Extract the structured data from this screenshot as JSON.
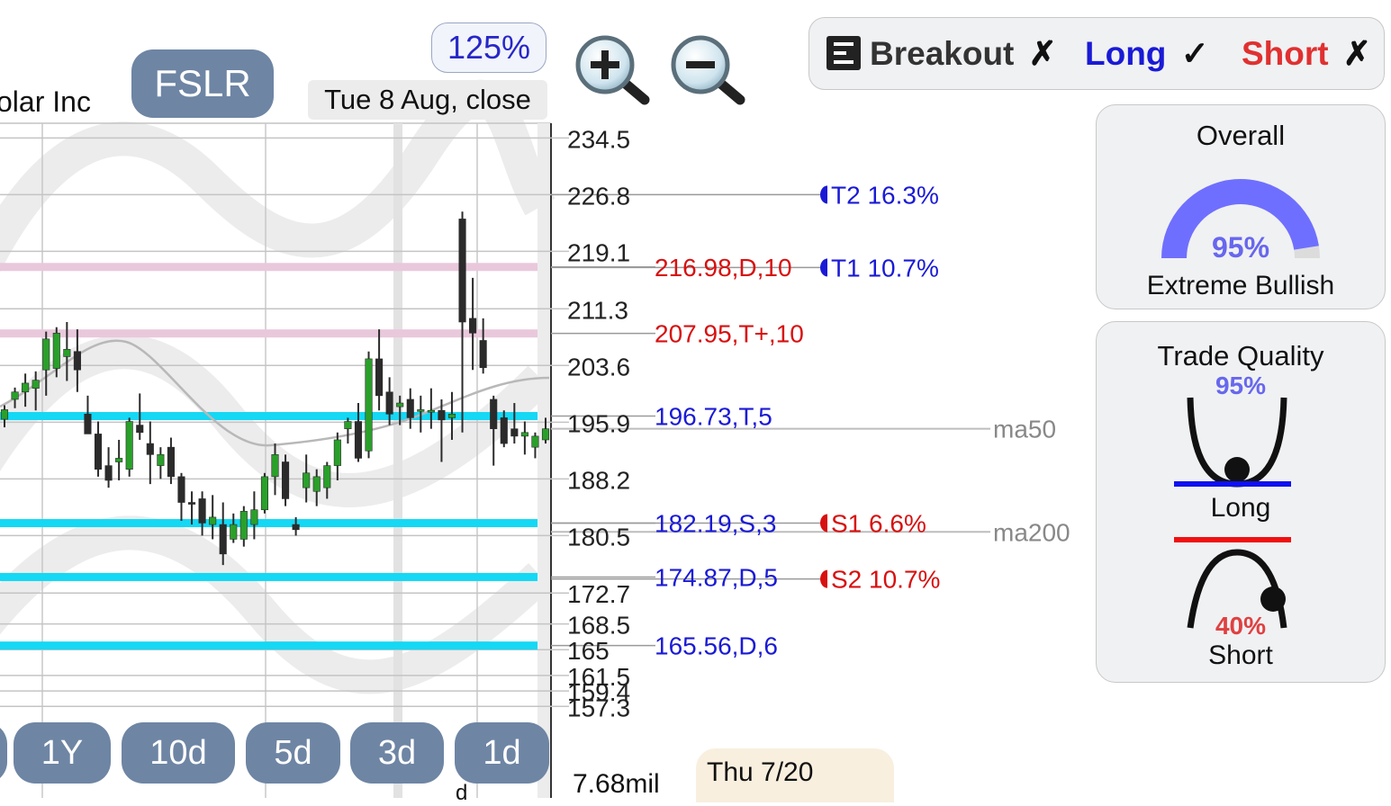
{
  "header": {
    "ticker": "FSLR",
    "company_fragment": "olar Inc",
    "zoom_level": "125%",
    "date_label": "Tue 8 Aug, close"
  },
  "strategy_bar": {
    "breakout": {
      "label": "Breakout",
      "mark": "✗"
    },
    "long": {
      "label": "Long",
      "mark": "✓"
    },
    "short": {
      "label": "Short",
      "mark": "✗"
    }
  },
  "overall": {
    "title": "Overall",
    "percent": "95%",
    "percent_value": 0.95,
    "verdict": "Extreme Bullish"
  },
  "trade_quality": {
    "title": "Trade Quality",
    "long_percent": "95%",
    "long_label": "Long",
    "short_percent": "40%",
    "short_label": "Short"
  },
  "timeframes": [
    "1Y",
    "10d",
    "5d",
    "3d",
    "1d"
  ],
  "volume_label": "7.68mil",
  "tooltip_date": "Thu 7/20",
  "d_marker": "d",
  "colors": {
    "up": "#2aa02a",
    "down": "#2b2b2b",
    "cyan": "#14d8f4",
    "pink": "#e9c8dc",
    "blue_text": "#1a1ad6",
    "red_text": "#d81010"
  },
  "chart_data": {
    "type": "candlestick",
    "ylim": [
      155.5,
      236.5
    ],
    "y_tick_labels": [
      "234.5",
      "226.8",
      "219.1",
      "211.3",
      "203.6",
      "195.9",
      "188.2",
      "180.5",
      "172.7",
      "168.5",
      "165",
      "161.5",
      "159.4",
      "157.3"
    ],
    "candles": [
      {
        "o": 196.3,
        "h": 198.2,
        "l": 195.2,
        "c": 197.6
      },
      {
        "o": 199.0,
        "h": 200.6,
        "l": 197.8,
        "c": 200.0
      },
      {
        "o": 200.0,
        "h": 202.5,
        "l": 198.0,
        "c": 201.2
      },
      {
        "o": 200.5,
        "h": 202.8,
        "l": 197.5,
        "c": 201.6
      },
      {
        "o": 203.0,
        "h": 208.2,
        "l": 199.5,
        "c": 207.2
      },
      {
        "o": 203.2,
        "h": 208.8,
        "l": 202.0,
        "c": 208.0
      },
      {
        "o": 204.8,
        "h": 209.5,
        "l": 201.5,
        "c": 205.8
      },
      {
        "o": 205.5,
        "h": 208.5,
        "l": 200.0,
        "c": 203.0
      },
      {
        "o": 197.0,
        "h": 199.5,
        "l": 195.0,
        "c": 194.3
      },
      {
        "o": 194.3,
        "h": 196.0,
        "l": 188.5,
        "c": 189.5
      },
      {
        "o": 190.0,
        "h": 192.5,
        "l": 187.0,
        "c": 188.0
      },
      {
        "o": 190.5,
        "h": 193.5,
        "l": 188.0,
        "c": 191.0
      },
      {
        "o": 189.5,
        "h": 196.5,
        "l": 188.5,
        "c": 196.0
      },
      {
        "o": 195.5,
        "h": 199.8,
        "l": 193.5,
        "c": 194.5
      },
      {
        "o": 193.0,
        "h": 196.0,
        "l": 187.5,
        "c": 191.5
      },
      {
        "o": 190.0,
        "h": 192.5,
        "l": 188.2,
        "c": 191.5
      },
      {
        "o": 192.5,
        "h": 193.8,
        "l": 187.5,
        "c": 188.5
      },
      {
        "o": 188.5,
        "h": 189.0,
        "l": 182.5,
        "c": 185.0
      },
      {
        "o": 185.0,
        "h": 186.5,
        "l": 182.0,
        "c": 184.8
      },
      {
        "o": 185.5,
        "h": 186.5,
        "l": 180.5,
        "c": 182.2
      },
      {
        "o": 182.0,
        "h": 186.0,
        "l": 180.0,
        "c": 183.0
      },
      {
        "o": 182.0,
        "h": 185.0,
        "l": 176.5,
        "c": 178.0
      },
      {
        "o": 180.0,
        "h": 183.5,
        "l": 179.5,
        "c": 182.0
      },
      {
        "o": 180.0,
        "h": 184.5,
        "l": 179.0,
        "c": 183.8
      },
      {
        "o": 182.0,
        "h": 186.5,
        "l": 180.0,
        "c": 184.0
      },
      {
        "o": 184.0,
        "h": 189.0,
        "l": 183.5,
        "c": 188.5
      },
      {
        "o": 188.5,
        "h": 193.0,
        "l": 186.0,
        "c": 191.5
      },
      {
        "o": 190.5,
        "h": 191.5,
        "l": 184.5,
        "c": 185.5
      },
      {
        "o": 182.0,
        "h": 183.0,
        "l": 180.5,
        "c": 181.3
      },
      {
        "o": 187.0,
        "h": 191.5,
        "l": 185.0,
        "c": 189.0
      },
      {
        "o": 186.5,
        "h": 189.5,
        "l": 184.5,
        "c": 188.5
      },
      {
        "o": 187.0,
        "h": 190.5,
        "l": 185.5,
        "c": 190.0
      },
      {
        "o": 190.0,
        "h": 194.5,
        "l": 188.0,
        "c": 193.5
      },
      {
        "o": 195.0,
        "h": 196.5,
        "l": 193.0,
        "c": 196.0
      },
      {
        "o": 196.0,
        "h": 198.5,
        "l": 190.5,
        "c": 191.0
      },
      {
        "o": 192.0,
        "h": 205.5,
        "l": 191.0,
        "c": 204.5
      },
      {
        "o": 204.5,
        "h": 208.5,
        "l": 197.5,
        "c": 199.5
      },
      {
        "o": 200.0,
        "h": 202.0,
        "l": 195.5,
        "c": 197.0
      },
      {
        "o": 198.0,
        "h": 199.5,
        "l": 195.5,
        "c": 198.5
      },
      {
        "o": 199.0,
        "h": 200.5,
        "l": 195.0,
        "c": 196.5
      },
      {
        "o": 197.5,
        "h": 199.5,
        "l": 194.5,
        "c": 197.6
      },
      {
        "o": 197.5,
        "h": 200.5,
        "l": 195.0,
        "c": 197.5
      },
      {
        "o": 197.5,
        "h": 199.0,
        "l": 190.5,
        "c": 196.2
      },
      {
        "o": 196.5,
        "h": 200.0,
        "l": 193.5,
        "c": 197.0
      },
      {
        "o": 223.5,
        "h": 224.5,
        "l": 194.5,
        "c": 209.5
      },
      {
        "o": 210.0,
        "h": 215.5,
        "l": 203.0,
        "c": 208.0
      },
      {
        "o": 207.0,
        "h": 210.0,
        "l": 202.5,
        "c": 203.3
      },
      {
        "o": 199.0,
        "h": 199.5,
        "l": 190.0,
        "c": 195.0
      },
      {
        "o": 196.5,
        "h": 197.5,
        "l": 192.5,
        "c": 193.0
      },
      {
        "o": 195.0,
        "h": 198.5,
        "l": 193.0,
        "c": 194.0
      },
      {
        "o": 194.0,
        "h": 196.0,
        "l": 191.5,
        "c": 194.5
      },
      {
        "o": 192.5,
        "h": 194.5,
        "l": 191.0,
        "c": 194.0
      },
      {
        "o": 193.5,
        "h": 196.5,
        "l": 193.0,
        "c": 195.0
      }
    ],
    "support_resistance": [
      {
        "label": "216.98,D,10",
        "value": 216.98,
        "kind": "resistance"
      },
      {
        "label": "207.95,T+,10",
        "value": 207.95,
        "kind": "resistance"
      },
      {
        "label": "196.73,T,5",
        "value": 196.73,
        "kind": "support"
      },
      {
        "label": "182.19,S,3",
        "value": 182.19,
        "kind": "support"
      },
      {
        "label": "174.87,D,5",
        "value": 174.87,
        "kind": "support"
      },
      {
        "label": "165.56,D,6",
        "value": 165.56,
        "kind": "support"
      }
    ],
    "targets": [
      {
        "label": "T2 16.3%",
        "value": 226.8
      },
      {
        "label": "T1 10.7%",
        "value": 216.9
      }
    ],
    "stops": [
      {
        "label": "S1 6.6%",
        "value": 182.2
      },
      {
        "label": "S2 10.7%",
        "value": 174.6
      }
    ],
    "moving_averages": [
      {
        "name": "ma50",
        "value": 195.0
      },
      {
        "name": "ma200",
        "value": 181.0
      }
    ]
  }
}
